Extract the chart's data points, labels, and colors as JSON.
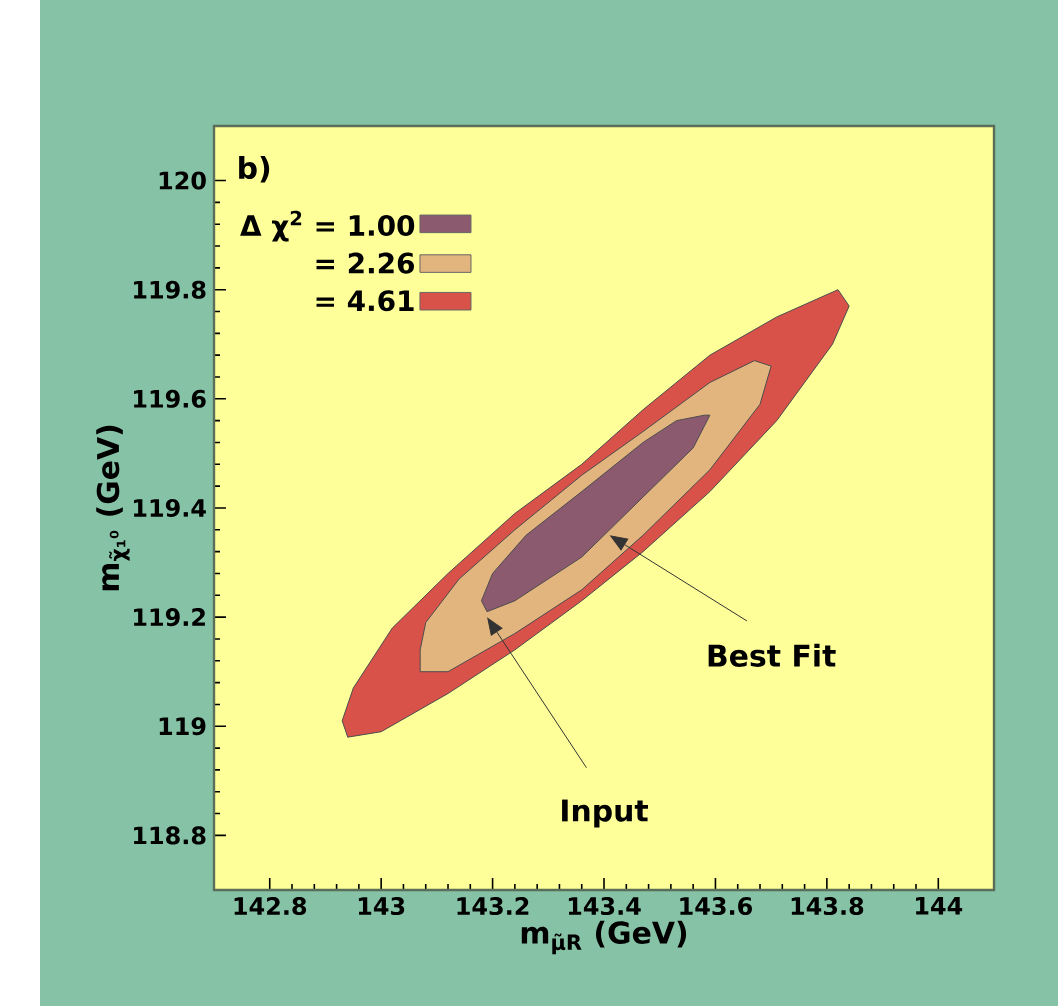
{
  "chart_data": {
    "type": "area",
    "xlabel": "m$_{μ̃R}$ (GeV)",
    "ylabel": "m$_{χ̃₁⁰}$ (GeV)",
    "xlim": [
      142.7,
      144.1
    ],
    "ylim": [
      118.7,
      120.1
    ],
    "xticks": [
      142.8,
      {
        "value": 143,
        "label": "143"
      },
      143.2,
      143.4,
      143.6,
      143.8,
      {
        "value": 144,
        "label": "144"
      }
    ],
    "yticks": [
      118.8,
      {
        "value": 119,
        "label": "119"
      },
      119.2,
      119.4,
      119.6,
      119.8,
      {
        "value": 120,
        "label": "120"
      }
    ],
    "legend": "top left",
    "grid": false,
    "annotations": [
      "b)",
      {
        "text": "Input",
        "x": 143.19,
        "y": 119.2
      },
      {
        "text": "Best Fit",
        "x": 143.41,
        "y": 119.35
      }
    ],
    "series": [
      {
        "name": "Δ χ$^{2}$ = 1.00",
        "color": "#8c5a6e",
        "x": [
          143.19,
          143.24,
          143.36,
          143.47,
          143.56,
          143.59,
          143.58,
          143.53,
          143.47,
          143.36,
          143.26,
          143.2,
          143.18
        ],
        "values": [
          119.21,
          119.23,
          119.31,
          119.42,
          119.51,
          119.57,
          119.57,
          119.56,
          119.52,
          119.43,
          119.35,
          119.28,
          119.23
        ]
      },
      {
        "name": "= 2.26",
        "color": "#e2b47e",
        "x": [
          143.07,
          143.12,
          143.24,
          143.36,
          143.47,
          143.59,
          143.68,
          143.7,
          143.67,
          143.59,
          143.47,
          143.36,
          143.24,
          143.14,
          143.08,
          143.07
        ],
        "values": [
          119.1,
          119.1,
          119.17,
          119.25,
          119.35,
          119.47,
          119.59,
          119.66,
          119.67,
          119.63,
          119.54,
          119.46,
          119.36,
          119.27,
          119.19,
          119.14
        ]
      },
      {
        "name": "= 4.61",
        "color": "#d8524a",
        "x": [
          142.94,
          143.0,
          143.12,
          143.24,
          143.36,
          143.47,
          143.59,
          143.71,
          143.81,
          143.84,
          143.82,
          143.71,
          143.59,
          143.47,
          143.36,
          143.24,
          143.12,
          143.02,
          142.95,
          142.93
        ],
        "values": [
          118.98,
          118.99,
          119.06,
          119.14,
          119.23,
          119.32,
          119.43,
          119.56,
          119.7,
          119.77,
          119.8,
          119.75,
          119.68,
          119.58,
          119.48,
          119.39,
          119.28,
          119.18,
          119.07,
          119.01
        ]
      }
    ]
  }
}
